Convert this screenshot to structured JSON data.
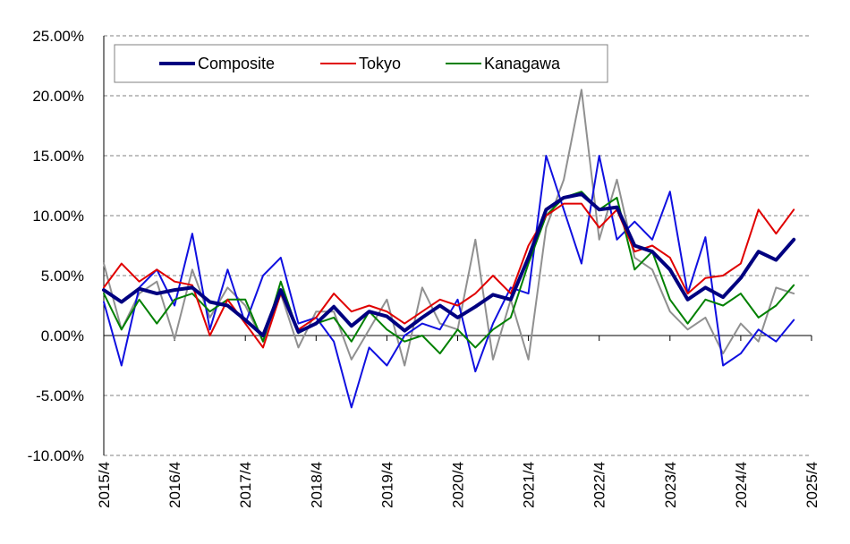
{
  "chart_data": {
    "type": "line",
    "title": "",
    "xlabel": "",
    "ylabel": "",
    "ylim": [
      -10,
      25
    ],
    "y_unit": "%",
    "y_ticks": [
      -10,
      -5,
      0,
      5,
      10,
      15,
      20,
      25
    ],
    "y_tick_labels": [
      "-10.00%",
      "-5.00%",
      "0.00%",
      "5.00%",
      "10.00%",
      "15.00%",
      "20.00%",
      "25.00%"
    ],
    "x_tick_labels": [
      "2015/4",
      "2016/4",
      "2017/4",
      "2018/4",
      "2019/4",
      "2020/4",
      "2021/4",
      "2022/4",
      "2023/4",
      "2024/4",
      "2025/4"
    ],
    "x_range": [
      "2015/4",
      "2025/4"
    ],
    "grid": "horizontal dashed",
    "legend_position": "top-left",
    "series": [
      {
        "name": "Composite",
        "color": "#000080",
        "width": 4,
        "in_legend": true,
        "points": [
          [
            "2015/4",
            3.8
          ],
          [
            "2015/7",
            2.8
          ],
          [
            "2015/10",
            3.9
          ],
          [
            "2016/1",
            3.5
          ],
          [
            "2016/4",
            3.8
          ],
          [
            "2016/7",
            4.0
          ],
          [
            "2016/10",
            2.8
          ],
          [
            "2017/1",
            2.5
          ],
          [
            "2017/4",
            1.3
          ],
          [
            "2017/7",
            0.0
          ],
          [
            "2017/10",
            3.8
          ],
          [
            "2018/1",
            0.3
          ],
          [
            "2018/4",
            1.0
          ],
          [
            "2018/7",
            2.4
          ],
          [
            "2018/10",
            0.8
          ],
          [
            "2019/1",
            2.0
          ],
          [
            "2019/4",
            1.6
          ],
          [
            "2019/7",
            0.4
          ],
          [
            "2019/10",
            1.5
          ],
          [
            "2020/1",
            2.5
          ],
          [
            "2020/4",
            1.5
          ],
          [
            "2020/7",
            2.4
          ],
          [
            "2020/10",
            3.4
          ],
          [
            "2021/1",
            3.0
          ],
          [
            "2021/4",
            6.5
          ],
          [
            "2021/7",
            10.5
          ],
          [
            "2021/10",
            11.5
          ],
          [
            "2022/1",
            11.8
          ],
          [
            "2022/4",
            10.5
          ],
          [
            "2022/7",
            10.7
          ],
          [
            "2022/10",
            7.5
          ],
          [
            "2023/1",
            7.0
          ],
          [
            "2023/4",
            5.5
          ],
          [
            "2023/7",
            3.0
          ],
          [
            "2023/10",
            4.0
          ],
          [
            "2024/1",
            3.2
          ],
          [
            "2024/4",
            4.8
          ],
          [
            "2024/7",
            7.0
          ],
          [
            "2024/10",
            6.3
          ],
          [
            "2025/1",
            8.0
          ]
        ]
      },
      {
        "name": "Tokyo",
        "color": "#e00000",
        "width": 2,
        "in_legend": true,
        "points": [
          [
            "2015/4",
            4.0
          ],
          [
            "2015/7",
            6.0
          ],
          [
            "2015/10",
            4.5
          ],
          [
            "2016/1",
            5.5
          ],
          [
            "2016/4",
            4.5
          ],
          [
            "2016/7",
            4.2
          ],
          [
            "2016/10",
            0.0
          ],
          [
            "2017/1",
            3.0
          ],
          [
            "2017/4",
            1.0
          ],
          [
            "2017/7",
            -1.0
          ],
          [
            "2017/10",
            3.5
          ],
          [
            "2018/1",
            0.5
          ],
          [
            "2018/4",
            1.5
          ],
          [
            "2018/7",
            3.5
          ],
          [
            "2018/10",
            2.0
          ],
          [
            "2019/1",
            2.5
          ],
          [
            "2019/4",
            2.0
          ],
          [
            "2019/7",
            1.0
          ],
          [
            "2019/10",
            2.0
          ],
          [
            "2020/1",
            3.0
          ],
          [
            "2020/4",
            2.5
          ],
          [
            "2020/7",
            3.5
          ],
          [
            "2020/10",
            5.0
          ],
          [
            "2021/1",
            3.5
          ],
          [
            "2021/4",
            7.5
          ],
          [
            "2021/7",
            10.0
          ],
          [
            "2021/10",
            11.0
          ],
          [
            "2022/1",
            11.0
          ],
          [
            "2022/4",
            9.0
          ],
          [
            "2022/7",
            10.5
          ],
          [
            "2022/10",
            7.0
          ],
          [
            "2023/1",
            7.5
          ],
          [
            "2023/4",
            6.5
          ],
          [
            "2023/7",
            3.5
          ],
          [
            "2023/10",
            4.8
          ],
          [
            "2024/1",
            5.0
          ],
          [
            "2024/4",
            6.0
          ],
          [
            "2024/7",
            10.5
          ],
          [
            "2024/10",
            8.5
          ],
          [
            "2025/1",
            10.5
          ]
        ]
      },
      {
        "name": "Kanagawa",
        "color": "#008000",
        "width": 2,
        "in_legend": true,
        "points": [
          [
            "2015/4",
            3.5
          ],
          [
            "2015/7",
            0.5
          ],
          [
            "2015/10",
            3.0
          ],
          [
            "2016/1",
            1.0
          ],
          [
            "2016/4",
            3.0
          ],
          [
            "2016/7",
            3.5
          ],
          [
            "2016/10",
            2.0
          ],
          [
            "2017/1",
            3.0
          ],
          [
            "2017/4",
            3.0
          ],
          [
            "2017/7",
            -0.5
          ],
          [
            "2017/10",
            4.5
          ],
          [
            "2018/1",
            0.2
          ],
          [
            "2018/4",
            1.0
          ],
          [
            "2018/7",
            1.5
          ],
          [
            "2018/10",
            -0.5
          ],
          [
            "2019/1",
            2.0
          ],
          [
            "2019/4",
            0.5
          ],
          [
            "2019/7",
            -0.5
          ],
          [
            "2019/10",
            0.0
          ],
          [
            "2020/1",
            -1.5
          ],
          [
            "2020/4",
            0.5
          ],
          [
            "2020/7",
            -1.0
          ],
          [
            "2020/10",
            0.5
          ],
          [
            "2021/1",
            1.5
          ],
          [
            "2021/4",
            6.0
          ],
          [
            "2021/7",
            10.0
          ],
          [
            "2021/10",
            11.5
          ],
          [
            "2022/1",
            12.0
          ],
          [
            "2022/4",
            10.5
          ],
          [
            "2022/7",
            11.5
          ],
          [
            "2022/10",
            5.5
          ],
          [
            "2023/1",
            7.0
          ],
          [
            "2023/4",
            3.0
          ],
          [
            "2023/7",
            1.0
          ],
          [
            "2023/10",
            3.0
          ],
          [
            "2024/1",
            2.5
          ],
          [
            "2024/4",
            3.5
          ],
          [
            "2024/7",
            1.5
          ],
          [
            "2024/10",
            2.5
          ],
          [
            "2025/1",
            4.2
          ]
        ]
      },
      {
        "name": "",
        "color": "#1010e0",
        "width": 2,
        "in_legend": false,
        "points": [
          [
            "2015/4",
            2.8
          ],
          [
            "2015/7",
            -2.5
          ],
          [
            "2015/10",
            4.0
          ],
          [
            "2016/1",
            5.5
          ],
          [
            "2016/4",
            2.5
          ],
          [
            "2016/7",
            8.5
          ],
          [
            "2016/10",
            0.5
          ],
          [
            "2017/1",
            5.5
          ],
          [
            "2017/4",
            1.0
          ],
          [
            "2017/7",
            5.0
          ],
          [
            "2017/10",
            6.5
          ],
          [
            "2018/1",
            1.0
          ],
          [
            "2018/4",
            1.5
          ],
          [
            "2018/7",
            -0.5
          ],
          [
            "2018/10",
            -6.0
          ],
          [
            "2019/1",
            -1.0
          ],
          [
            "2019/4",
            -2.5
          ],
          [
            "2019/7",
            0.0
          ],
          [
            "2019/10",
            1.0
          ],
          [
            "2020/1",
            0.5
          ],
          [
            "2020/4",
            3.0
          ],
          [
            "2020/7",
            -3.0
          ],
          [
            "2020/10",
            1.0
          ],
          [
            "2021/1",
            4.0
          ],
          [
            "2021/4",
            3.5
          ],
          [
            "2021/7",
            15.0
          ],
          [
            "2021/10",
            10.5
          ],
          [
            "2022/1",
            6.0
          ],
          [
            "2022/4",
            15.0
          ],
          [
            "2022/7",
            8.0
          ],
          [
            "2022/10",
            9.5
          ],
          [
            "2023/1",
            8.0
          ],
          [
            "2023/4",
            12.0
          ],
          [
            "2023/7",
            3.5
          ],
          [
            "2023/10",
            8.2
          ],
          [
            "2024/1",
            -2.5
          ],
          [
            "2024/4",
            -1.5
          ],
          [
            "2024/7",
            0.5
          ],
          [
            "2024/10",
            -0.5
          ],
          [
            "2025/1",
            1.3
          ]
        ]
      },
      {
        "name": "",
        "color": "#909090",
        "width": 2,
        "in_legend": false,
        "points": [
          [
            "2015/4",
            6.0
          ],
          [
            "2015/7",
            0.5
          ],
          [
            "2015/10",
            3.5
          ],
          [
            "2016/1",
            4.5
          ],
          [
            "2016/4",
            -0.3
          ],
          [
            "2016/7",
            5.5
          ],
          [
            "2016/10",
            1.5
          ],
          [
            "2017/1",
            4.0
          ],
          [
            "2017/4",
            2.5
          ],
          [
            "2017/7",
            -0.5
          ],
          [
            "2017/10",
            3.5
          ],
          [
            "2018/1",
            -1.0
          ],
          [
            "2018/4",
            2.0
          ],
          [
            "2018/7",
            2.0
          ],
          [
            "2018/10",
            -2.0
          ],
          [
            "2019/1",
            0.5
          ],
          [
            "2019/4",
            3.0
          ],
          [
            "2019/7",
            -2.5
          ],
          [
            "2019/10",
            4.0
          ],
          [
            "2020/1",
            1.0
          ],
          [
            "2020/4",
            0.5
          ],
          [
            "2020/7",
            8.0
          ],
          [
            "2020/10",
            -2.0
          ],
          [
            "2021/1",
            3.0
          ],
          [
            "2021/4",
            -2.0
          ],
          [
            "2021/7",
            9.0
          ],
          [
            "2021/10",
            13.0
          ],
          [
            "2022/1",
            20.5
          ],
          [
            "2022/4",
            8.0
          ],
          [
            "2022/7",
            13.0
          ],
          [
            "2022/10",
            6.5
          ],
          [
            "2023/1",
            5.5
          ],
          [
            "2023/4",
            2.0
          ],
          [
            "2023/7",
            0.5
          ],
          [
            "2023/10",
            1.5
          ],
          [
            "2024/1",
            -1.5
          ],
          [
            "2024/4",
            1.0
          ],
          [
            "2024/7",
            -0.5
          ],
          [
            "2024/10",
            4.0
          ],
          [
            "2025/1",
            3.5
          ]
        ]
      }
    ]
  }
}
